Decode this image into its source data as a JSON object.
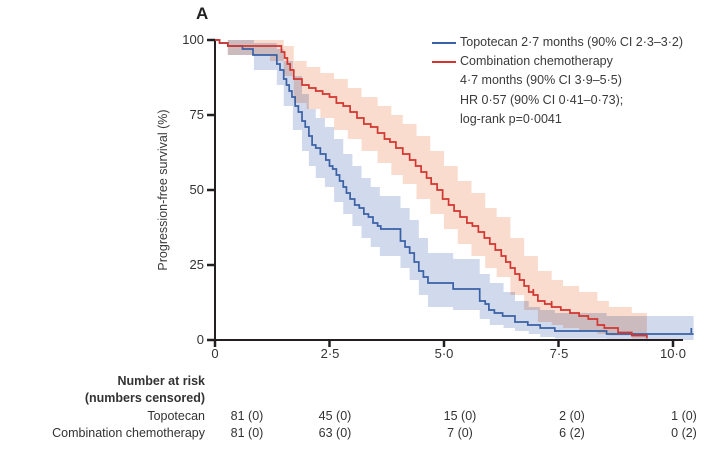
{
  "panel_label": "A",
  "y_axis": {
    "label": "Progression-free survival (%)",
    "ticks": [
      "100",
      "75",
      "50",
      "25",
      "0"
    ],
    "tick_values": [
      100,
      75,
      50,
      25,
      0
    ]
  },
  "x_axis": {
    "ticks": [
      "0",
      "2·5",
      "5·0",
      "7·5",
      "10·0"
    ],
    "tick_values": [
      0,
      2.5,
      5,
      7.5,
      10
    ]
  },
  "legend": {
    "topotecan": {
      "label": "Topotecan 2·7 months (90% CI 2·3–3·2)",
      "color": "#3a61a5"
    },
    "combination": {
      "lines": [
        "Combination chemotherapy",
        "4·7 months (90% CI 3·9–5·5)",
        "HR 0·57 (90% CI 0·41–0·73);",
        "log-rank p=0·0041"
      ],
      "color": "#d23630"
    }
  },
  "risk_table": {
    "header_line1": "Number at risk",
    "header_line2": "(numbers censored)",
    "rows": [
      {
        "label": "Topotecan",
        "values": [
          "81 (0)",
          "45 (0)",
          "15 (0)",
          "2 (0)",
          "1 (0)"
        ]
      },
      {
        "label": "Combination chemotherapy",
        "values": [
          "81 (0)",
          "63 (0)",
          "7 (0)",
          "6 (2)",
          "0 (2)"
        ]
      }
    ]
  },
  "chart_data": {
    "type": "line",
    "subtype": "kaplan-meier-step",
    "title": "A",
    "xlabel": "",
    "ylabel": "Progression-free survival (%)",
    "xlim": [
      0,
      10.5
    ],
    "ylim": [
      0,
      100
    ],
    "x_ticks": [
      0,
      2.5,
      5,
      7.5,
      10
    ],
    "y_ticks": [
      0,
      25,
      50,
      75,
      100
    ],
    "grid": false,
    "legend_position": "top-right",
    "series": [
      {
        "name": "Topotecan",
        "median_months": 2.7,
        "median_ci": "90% CI 2·3–3·2",
        "color": "#3a61a5",
        "band_color": "rgba(111,138,199,0.32)",
        "steps": [
          [
            0,
            100
          ],
          [
            0.1,
            99
          ],
          [
            0.28,
            98
          ],
          [
            0.6,
            97
          ],
          [
            0.83,
            95
          ],
          [
            1.35,
            92
          ],
          [
            1.42,
            90
          ],
          [
            1.5,
            87
          ],
          [
            1.56,
            85
          ],
          [
            1.62,
            83
          ],
          [
            1.68,
            81
          ],
          [
            1.75,
            78
          ],
          [
            1.82,
            76
          ],
          [
            1.9,
            73
          ],
          [
            1.97,
            71
          ],
          [
            2.05,
            68
          ],
          [
            2.12,
            65
          ],
          [
            2.2,
            64
          ],
          [
            2.3,
            62
          ],
          [
            2.42,
            60
          ],
          [
            2.5,
            58
          ],
          [
            2.57,
            57
          ],
          [
            2.65,
            55
          ],
          [
            2.72,
            53
          ],
          [
            2.8,
            51
          ],
          [
            2.87,
            49
          ],
          [
            2.95,
            47
          ],
          [
            3.05,
            45
          ],
          [
            3.15,
            44
          ],
          [
            3.25,
            42
          ],
          [
            3.35,
            41
          ],
          [
            3.45,
            39
          ],
          [
            3.55,
            38
          ],
          [
            3.62,
            37
          ],
          [
            4.05,
            33
          ],
          [
            4.15,
            31
          ],
          [
            4.25,
            29
          ],
          [
            4.35,
            26
          ],
          [
            4.45,
            23
          ],
          [
            4.55,
            21
          ],
          [
            4.65,
            19
          ],
          [
            5.2,
            17
          ],
          [
            5.78,
            13
          ],
          [
            5.9,
            12
          ],
          [
            5.98,
            10
          ],
          [
            6.1,
            9
          ],
          [
            6.28,
            8
          ],
          [
            6.55,
            6
          ],
          [
            6.83,
            5
          ],
          [
            7.1,
            4
          ],
          [
            7.42,
            3
          ],
          [
            8.55,
            2
          ],
          [
            10.45,
            2
          ]
        ],
        "band": [
          [
            0,
            100,
            100
          ],
          [
            0.28,
            100,
            95
          ],
          [
            0.85,
            99,
            90
          ],
          [
            1.35,
            97,
            85
          ],
          [
            1.5,
            93,
            78
          ],
          [
            1.7,
            88,
            70
          ],
          [
            1.9,
            82,
            63
          ],
          [
            2.05,
            77,
            58
          ],
          [
            2.2,
            74,
            54
          ],
          [
            2.4,
            71,
            51
          ],
          [
            2.6,
            67,
            46
          ],
          [
            2.8,
            62,
            42
          ],
          [
            3.0,
            58,
            38
          ],
          [
            3.2,
            54,
            34
          ],
          [
            3.4,
            51,
            31
          ],
          [
            3.6,
            48,
            28
          ],
          [
            4.05,
            44,
            24
          ],
          [
            4.25,
            40,
            20
          ],
          [
            4.45,
            34,
            15
          ],
          [
            4.65,
            29,
            11
          ],
          [
            5.2,
            27,
            10
          ],
          [
            5.78,
            22,
            7
          ],
          [
            6.0,
            19,
            5
          ],
          [
            6.3,
            16,
            4
          ],
          [
            6.55,
            13,
            3
          ],
          [
            6.85,
            11,
            2
          ],
          [
            7.1,
            10,
            1
          ],
          [
            7.42,
            9,
            0.5
          ],
          [
            8.55,
            8,
            0
          ],
          [
            10.45,
            8,
            0
          ]
        ],
        "censor_marks": [
          [
            10.4,
            2
          ]
        ]
      },
      {
        "name": "Combination chemotherapy",
        "median_months": 4.7,
        "median_ci": "90% CI 3·9–5·5",
        "hazard_ratio": "HR 0·57 (90% CI 0·41–0·73)",
        "log_rank_p": "0·0041",
        "color": "#d23630",
        "band_color": "rgba(235,140,90,0.30)",
        "steps": [
          [
            0,
            100
          ],
          [
            0.1,
            99
          ],
          [
            0.28,
            98
          ],
          [
            1.2,
            98
          ],
          [
            1.45,
            96
          ],
          [
            1.52,
            94
          ],
          [
            1.58,
            92
          ],
          [
            1.64,
            90
          ],
          [
            1.72,
            87
          ],
          [
            1.9,
            85
          ],
          [
            2.05,
            84
          ],
          [
            2.2,
            83
          ],
          [
            2.35,
            82
          ],
          [
            2.5,
            81
          ],
          [
            2.65,
            79
          ],
          [
            2.8,
            78
          ],
          [
            2.95,
            76
          ],
          [
            3.1,
            74
          ],
          [
            3.25,
            72
          ],
          [
            3.4,
            71
          ],
          [
            3.55,
            69
          ],
          [
            3.7,
            67
          ],
          [
            3.82,
            66
          ],
          [
            3.95,
            64
          ],
          [
            4.1,
            62
          ],
          [
            4.25,
            60
          ],
          [
            4.38,
            58
          ],
          [
            4.5,
            56
          ],
          [
            4.62,
            54
          ],
          [
            4.72,
            52
          ],
          [
            4.85,
            50
          ],
          [
            4.97,
            47
          ],
          [
            5.1,
            45
          ],
          [
            5.22,
            43
          ],
          [
            5.35,
            41
          ],
          [
            5.5,
            39
          ],
          [
            5.62,
            38
          ],
          [
            5.75,
            36
          ],
          [
            5.88,
            34
          ],
          [
            6.0,
            32
          ],
          [
            6.12,
            30
          ],
          [
            6.25,
            28
          ],
          [
            6.35,
            26
          ],
          [
            6.45,
            24
          ],
          [
            6.55,
            22
          ],
          [
            6.65,
            20
          ],
          [
            6.75,
            18
          ],
          [
            6.85,
            16
          ],
          [
            6.95,
            15
          ],
          [
            7.05,
            13
          ],
          [
            7.2,
            12
          ],
          [
            7.35,
            11
          ],
          [
            7.55,
            10
          ],
          [
            7.75,
            9
          ],
          [
            7.95,
            8
          ],
          [
            8.15,
            7
          ],
          [
            8.35,
            5
          ],
          [
            8.5,
            4
          ],
          [
            8.8,
            2.5
          ],
          [
            9.1,
            1.5
          ],
          [
            9.43,
            0.5
          ]
        ],
        "band": [
          [
            0,
            100,
            100
          ],
          [
            0.28,
            100,
            95
          ],
          [
            1.2,
            100,
            93
          ],
          [
            1.5,
            98,
            88
          ],
          [
            1.72,
            93,
            79
          ],
          [
            2.0,
            91,
            77
          ],
          [
            2.3,
            89,
            74
          ],
          [
            2.6,
            87,
            70
          ],
          [
            2.9,
            84,
            67
          ],
          [
            3.2,
            81,
            63
          ],
          [
            3.55,
            78,
            59
          ],
          [
            3.85,
            75,
            55
          ],
          [
            4.1,
            72,
            52
          ],
          [
            4.4,
            68,
            47
          ],
          [
            4.7,
            63,
            42
          ],
          [
            5.0,
            58,
            37
          ],
          [
            5.3,
            53,
            32
          ],
          [
            5.6,
            49,
            28
          ],
          [
            5.9,
            44,
            24
          ],
          [
            6.15,
            41,
            21
          ],
          [
            6.45,
            34,
            15
          ],
          [
            6.75,
            28,
            10
          ],
          [
            7.05,
            23,
            6
          ],
          [
            7.35,
            20,
            5
          ],
          [
            7.6,
            18,
            4
          ],
          [
            7.95,
            16,
            3
          ],
          [
            8.35,
            13,
            2
          ],
          [
            8.6,
            11,
            1.5
          ],
          [
            9.1,
            9,
            0.5
          ],
          [
            9.43,
            8,
            0
          ]
        ],
        "censor_marks": [
          [
            6.95,
            15
          ],
          [
            7.35,
            11
          ]
        ]
      }
    ],
    "number_at_risk": {
      "times": [
        0,
        2.5,
        5,
        7.5,
        10
      ],
      "Topotecan": {
        "at_risk": [
          81,
          45,
          15,
          2,
          1
        ],
        "censored": [
          0,
          0,
          0,
          0,
          0
        ]
      },
      "Combination chemotherapy": {
        "at_risk": [
          81,
          63,
          7,
          6,
          0
        ],
        "censored": [
          0,
          0,
          0,
          2,
          2
        ]
      }
    }
  }
}
